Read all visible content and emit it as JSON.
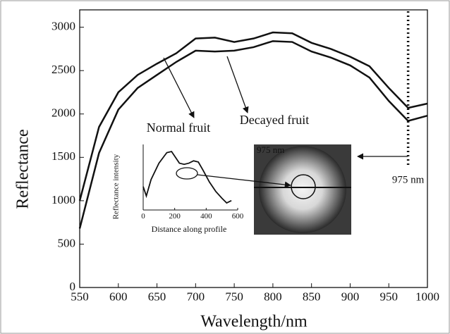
{
  "chart_data": [
    {
      "type": "line",
      "x_label": "Wavelength/nm",
      "y_label": "Reflectance",
      "x": [
        550,
        575,
        600,
        625,
        650,
        675,
        700,
        725,
        750,
        775,
        800,
        825,
        850,
        875,
        900,
        925,
        950,
        975,
        1000
      ],
      "series": [
        {
          "name": "Normal fruit",
          "color": "#111111",
          "values": [
            1000,
            1850,
            2250,
            2450,
            2580,
            2700,
            2870,
            2880,
            2830,
            2870,
            2940,
            2930,
            2820,
            2750,
            2660,
            2550,
            2300,
            2070,
            2120
          ]
        },
        {
          "name": "Decayed fruit",
          "color": "#111111",
          "values": [
            680,
            1550,
            2050,
            2300,
            2450,
            2600,
            2730,
            2720,
            2730,
            2770,
            2840,
            2830,
            2720,
            2650,
            2560,
            2420,
            2150,
            1920,
            1980
          ]
        }
      ],
      "xlim": [
        550,
        1000
      ],
      "xticks": [
        550,
        600,
        650,
        700,
        750,
        800,
        850,
        900,
        950,
        1000
      ],
      "ylim": [
        0,
        3200
      ],
      "yticks": [
        0,
        500,
        1000,
        1500,
        2000,
        2500,
        3000
      ],
      "marker_x": 975,
      "marker_label": "975 nm",
      "image_label": "975 nm"
    },
    {
      "type": "line",
      "x_label": "Distance along profile",
      "y_label": "Reflectance intensity",
      "x": [
        0,
        20,
        50,
        100,
        150,
        180,
        200,
        230,
        260,
        290,
        320,
        350,
        380,
        420,
        460,
        500,
        530,
        560
      ],
      "values": [
        100,
        60,
        130,
        200,
        245,
        250,
        230,
        200,
        195,
        200,
        210,
        205,
        170,
        120,
        80,
        50,
        30,
        40
      ],
      "color": "#111111",
      "xlim": [
        0,
        600
      ],
      "xticks": [
        0,
        200,
        400,
        600
      ],
      "ylim": [
        0,
        280
      ]
    }
  ]
}
